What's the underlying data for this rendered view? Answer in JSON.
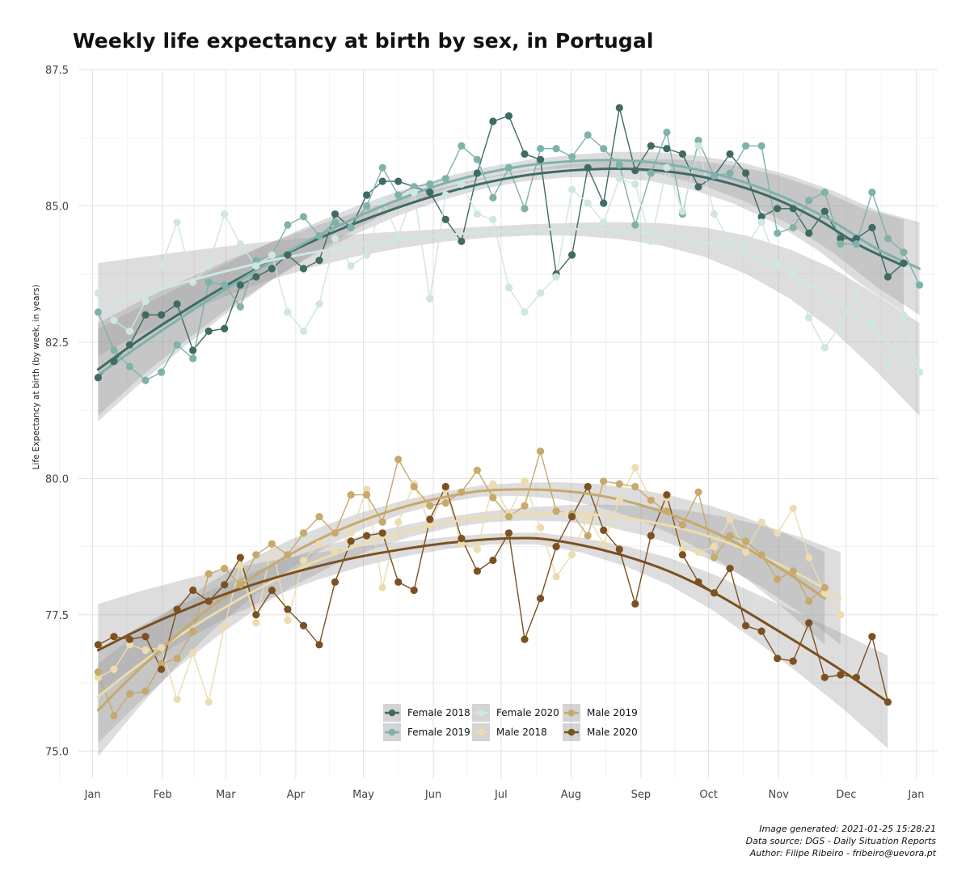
{
  "title": "Weekly life expectancy at birth by sex, in Portugal",
  "caption": {
    "line1": "Image generated: 2021-01-25 15:28:21",
    "line2": "Data source: DGS - Daily Situation Reports",
    "line3": "Author: Filipe Ribeiro - fribeiro@uevora.pt"
  },
  "chart_data": {
    "type": "line",
    "title": "Weekly life expectancy at birth by sex, in Portugal",
    "xlabel": "",
    "ylabel": "Life Expectancy at birth (by week, in years)",
    "x_unit": "week",
    "xlim": [
      -0.9,
      53.5
    ],
    "ylim": [
      74.5,
      87.5
    ],
    "grid": true,
    "legend_position": "bottom-center",
    "x_ticks": [
      {
        "label": "Jan",
        "week": 0
      },
      {
        "label": "Feb",
        "week": 4.43
      },
      {
        "label": "Mar",
        "week": 8.43
      },
      {
        "label": "Apr",
        "week": 12.86
      },
      {
        "label": "May",
        "week": 17.14
      },
      {
        "label": "Jun",
        "week": 21.57
      },
      {
        "label": "Jul",
        "week": 25.86
      },
      {
        "label": "Aug",
        "week": 30.29
      },
      {
        "label": "Sep",
        "week": 34.71
      },
      {
        "label": "Oct",
        "week": 39
      },
      {
        "label": "Nov",
        "week": 43.43
      },
      {
        "label": "Dec",
        "week": 47.71
      },
      {
        "label": "Jan",
        "week": 52.14
      }
    ],
    "y_ticks": [
      75.0,
      77.5,
      80.0,
      82.5,
      85.0,
      87.5
    ],
    "y_tick_labels": [
      "75.0",
      "77.5",
      "80.0",
      "82.5",
      "85.0",
      "87.5"
    ],
    "series": [
      {
        "name": "Female 2018",
        "color": "#3f6b65",
        "values": [
          81.85,
          82.15,
          82.45,
          83.0,
          83.0,
          83.2,
          82.35,
          82.7,
          82.75,
          83.55,
          83.7,
          83.85,
          84.1,
          83.85,
          84.0,
          84.85,
          84.6,
          85.2,
          85.45,
          85.45,
          85.35,
          85.25,
          84.75,
          84.35,
          85.6,
          86.55,
          86.65,
          85.95,
          85.85,
          83.75,
          84.1,
          85.7,
          85.05,
          86.8,
          85.65,
          86.1,
          86.05,
          85.95,
          85.35,
          85.55,
          85.95,
          85.6,
          84.8,
          84.95,
          84.95,
          84.5,
          84.9,
          84.4,
          84.4,
          84.6,
          83.7,
          83.95
        ],
        "trend": [
          82.0,
          82.56,
          83.06,
          83.53,
          83.95,
          84.33,
          84.66,
          84.95,
          85.2,
          85.4,
          85.55,
          85.64,
          85.68,
          85.66,
          85.57,
          85.39,
          85.12,
          84.74,
          84.26,
          83.9
        ]
      },
      {
        "name": "Female 2019",
        "color": "#7fb2ab",
        "values": [
          83.05,
          82.35,
          82.05,
          81.8,
          81.95,
          82.45,
          82.2,
          83.6,
          83.55,
          83.15,
          84.0,
          84.1,
          84.65,
          84.8,
          84.45,
          84.7,
          84.6,
          85.0,
          85.7,
          85.2,
          85.35,
          85.4,
          85.5,
          86.1,
          85.85,
          85.15,
          85.7,
          84.95,
          86.05,
          86.05,
          85.9,
          86.3,
          86.05,
          85.75,
          84.65,
          85.6,
          86.35,
          84.85,
          86.2,
          85.55,
          85.6,
          86.1,
          86.1,
          84.5,
          84.6,
          85.1,
          85.25,
          84.3,
          84.3,
          85.25,
          84.4,
          84.15,
          83.55
        ],
        "trend": [
          81.9,
          82.46,
          82.99,
          83.5,
          83.98,
          84.41,
          84.8,
          85.13,
          85.41,
          85.61,
          85.75,
          85.82,
          85.84,
          85.78,
          85.64,
          85.42,
          85.11,
          84.71,
          84.22,
          83.85
        ]
      },
      {
        "name": "Female 2020",
        "color": "#cfe6e2",
        "values": [
          83.4,
          82.9,
          82.7,
          83.25,
          83.9,
          84.7,
          83.6,
          83.9,
          84.85,
          84.3,
          83.9,
          84.1,
          83.05,
          82.7,
          83.2,
          84.4,
          83.9,
          84.1,
          85.1,
          84.45,
          85.25,
          83.3,
          85.2,
          85.4,
          84.85,
          84.75,
          83.5,
          83.05,
          83.4,
          83.7,
          85.3,
          85.05,
          84.7,
          85.5,
          85.4,
          84.35,
          85.7,
          84.9,
          86.1,
          84.85,
          84.35,
          84.25,
          84.7,
          83.95,
          83.8,
          82.95,
          82.4,
          82.8,
          83.4,
          82.85,
          82.05,
          83.0,
          81.95
        ],
        "trend": [
          83.1,
          83.36,
          83.6,
          83.81,
          84.0,
          84.15,
          84.28,
          84.38,
          84.46,
          84.52,
          84.56,
          84.57,
          84.55,
          84.48,
          84.34,
          84.1,
          83.75,
          83.28,
          82.67,
          82.0
        ]
      },
      {
        "name": "Male 2018",
        "color": "#ecdcb0",
        "values": [
          76.35,
          76.5,
          76.95,
          76.85,
          76.9,
          75.95,
          76.8,
          75.9,
          77.3,
          78.4,
          77.35,
          78.8,
          77.4,
          78.5,
          78.8,
          78.65,
          79.0,
          79.8,
          78.0,
          79.2,
          79.9,
          79.15,
          79.8,
          78.8,
          78.7,
          79.9,
          79.35,
          79.95,
          79.1,
          78.2,
          78.6,
          79.3,
          78.8,
          79.6,
          80.2,
          79.6,
          79.65,
          78.7,
          78.65,
          78.75,
          79.25,
          78.65,
          79.2,
          79.0,
          79.45,
          78.55,
          77.9,
          77.5
        ],
        "trend": [
          76.0,
          76.56,
          77.08,
          77.53,
          77.94,
          78.3,
          78.6,
          78.85,
          79.05,
          79.2,
          79.3,
          79.35,
          79.36,
          79.32,
          79.22,
          79.07,
          78.85,
          78.57,
          78.22,
          77.8
        ]
      },
      {
        "name": "Male 2019",
        "color": "#c6a96b",
        "values": [
          76.45,
          75.65,
          76.05,
          76.1,
          76.6,
          76.7,
          77.2,
          78.25,
          78.35,
          78.05,
          78.6,
          78.8,
          78.6,
          79.0,
          79.3,
          79.0,
          79.7,
          79.7,
          79.2,
          80.35,
          79.85,
          79.5,
          79.55,
          79.75,
          80.15,
          79.65,
          79.3,
          79.5,
          80.5,
          79.4,
          79.35,
          78.95,
          79.95,
          79.9,
          79.85,
          79.6,
          79.4,
          79.15,
          79.75,
          78.55,
          78.95,
          78.85,
          78.6,
          78.15,
          78.3,
          77.75,
          78.0
        ],
        "trend": [
          75.75,
          76.45,
          77.09,
          77.67,
          78.17,
          78.6,
          78.96,
          79.25,
          79.48,
          79.65,
          79.77,
          79.8,
          79.78,
          79.7,
          79.55,
          79.33,
          79.05,
          78.7,
          78.28,
          77.8
        ]
      },
      {
        "name": "Male 2020",
        "color": "#7c5020",
        "values": [
          76.95,
          77.1,
          77.05,
          77.1,
          76.5,
          77.6,
          77.95,
          77.75,
          78.05,
          78.55,
          77.5,
          77.95,
          77.6,
          77.3,
          76.95,
          78.1,
          78.85,
          78.95,
          79.0,
          78.1,
          77.95,
          79.25,
          79.85,
          78.9,
          78.3,
          78.5,
          79.0,
          77.05,
          77.8,
          78.75,
          79.3,
          79.85,
          79.05,
          78.7,
          77.7,
          78.95,
          79.7,
          78.6,
          78.1,
          77.9,
          78.35,
          77.3,
          77.2,
          76.7,
          76.65,
          77.35,
          76.35,
          76.4,
          76.35,
          77.1,
          75.9
        ],
        "trend": [
          76.85,
          77.25,
          77.6,
          77.91,
          78.17,
          78.39,
          78.57,
          78.71,
          78.82,
          78.89,
          78.9,
          78.78,
          78.58,
          78.3,
          77.92,
          77.45,
          76.96,
          76.45,
          75.9
        ]
      }
    ]
  }
}
